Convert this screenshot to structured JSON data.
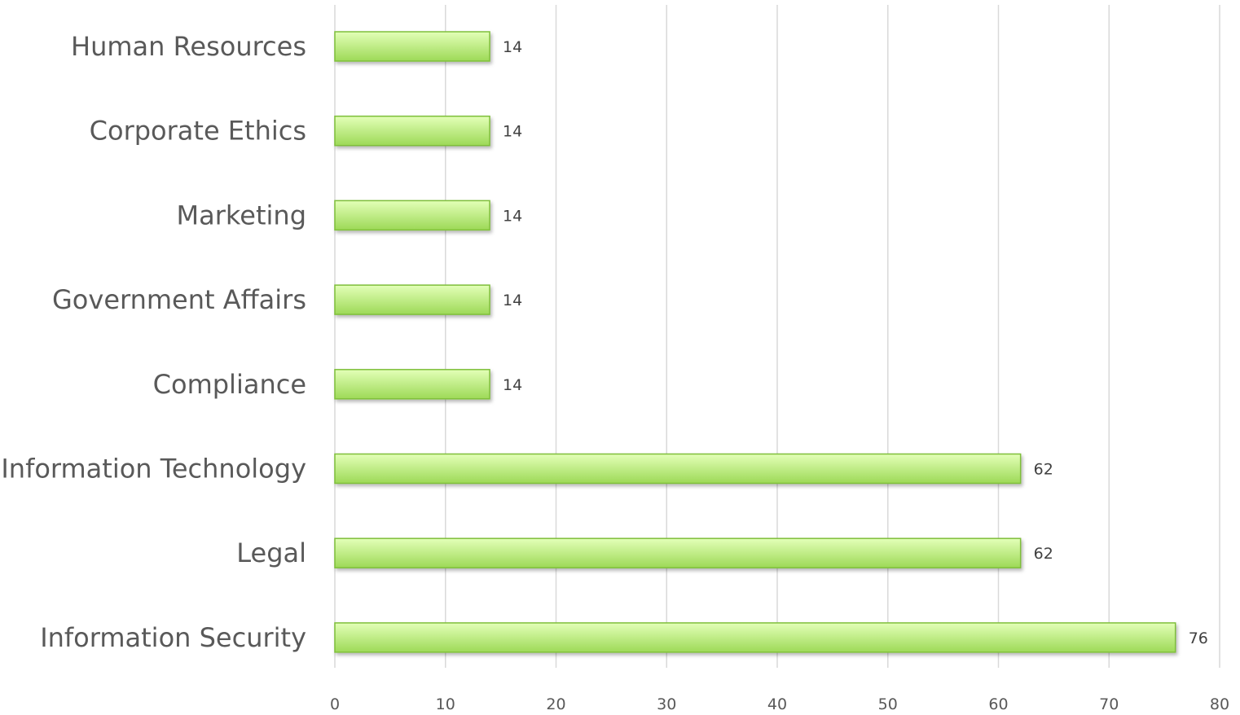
{
  "chart_data": {
    "type": "bar",
    "orientation": "horizontal",
    "categories": [
      "Human Resources",
      "Corporate Ethics",
      "Marketing",
      "Government Affairs",
      "Compliance",
      "Information Technology",
      "Legal",
      "Information Security"
    ],
    "values": [
      14,
      14,
      14,
      14,
      14,
      62,
      62,
      76
    ],
    "data_labels": [
      "14",
      "14",
      "14",
      "14",
      "14",
      "62",
      "62",
      "76"
    ],
    "title": "",
    "xlabel": "",
    "ylabel": "",
    "xlim": [
      0,
      80
    ],
    "xticks": [
      "0",
      "10",
      "20",
      "30",
      "40",
      "50",
      "60",
      "70",
      "80"
    ],
    "grid": "vertical",
    "legend": "none",
    "bar_color_light": "#e3ffb8",
    "bar_color_dark": "#9dd957",
    "bar_border_color": "#7fbf3a"
  }
}
